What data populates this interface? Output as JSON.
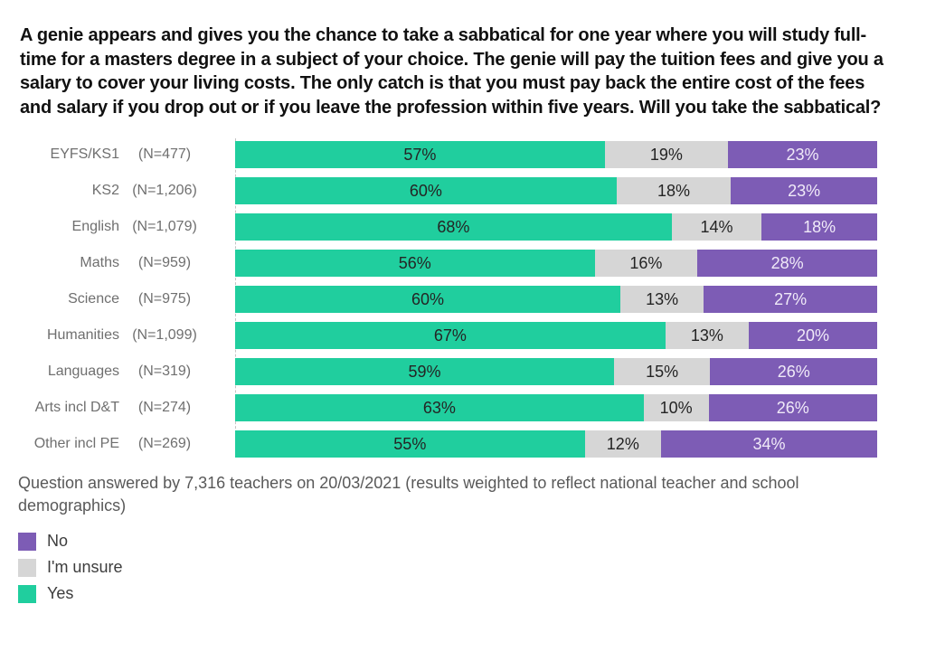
{
  "title": "A genie appears and gives you the chance to take a sabbatical for one year where you will study full-time for a masters degree in a subject of your choice. The genie will pay the tuition fees and give you a salary to cover your living costs. The only catch is that you must pay back the entire cost of the fees and salary if you drop out or if you leave the profession within five years. Will you take the sabbatical?",
  "footnote": "Question answered by 7,316 teachers on 20/03/2021 (results weighted to reflect national teacher and school demographics)",
  "colors": {
    "yes": "#20CE9E",
    "unsure": "#D6D6D6",
    "no": "#7D5CB5",
    "axis_line": "#C4C4C4",
    "category_text": "#6F6F6F",
    "title_text": "#111111",
    "footnote_text": "#595959"
  },
  "chart_data": {
    "type": "bar",
    "stacked": true,
    "orientation": "horizontal",
    "value_format": "percent",
    "axis_range": [
      0,
      100
    ],
    "grid": false,
    "categories": [
      "EYFS/KS1",
      "KS2",
      "English",
      "Maths",
      "Science",
      "Humanities",
      "Languages",
      "Arts incl D&T",
      "Other incl PE"
    ],
    "sample_labels": [
      "(N=477)",
      "(N=1,206)",
      "(N=1,079)",
      "(N=959)",
      "(N=975)",
      "(N=1,099)",
      "(N=319)",
      "(N=274)",
      "(N=269)"
    ],
    "series": [
      {
        "name": "Yes",
        "color": "#20CE9E",
        "label_color": "#242424",
        "values": [
          57,
          60,
          68,
          56,
          60,
          67,
          59,
          63,
          55
        ]
      },
      {
        "name": "I'm unsure",
        "color": "#D6D6D6",
        "label_color": "#242424",
        "values": [
          19,
          18,
          14,
          16,
          13,
          13,
          15,
          10,
          12
        ]
      },
      {
        "name": "No",
        "color": "#7D5CB5",
        "label_color": "#F0EAF8",
        "values": [
          23,
          23,
          18,
          28,
          27,
          20,
          26,
          26,
          34
        ]
      }
    ],
    "legend": {
      "position": "bottom-left",
      "items": [
        {
          "label": "No",
          "color": "#7D5CB5"
        },
        {
          "label": "I'm unsure",
          "color": "#D6D6D6"
        },
        {
          "label": "Yes",
          "color": "#20CE9E"
        }
      ]
    }
  }
}
